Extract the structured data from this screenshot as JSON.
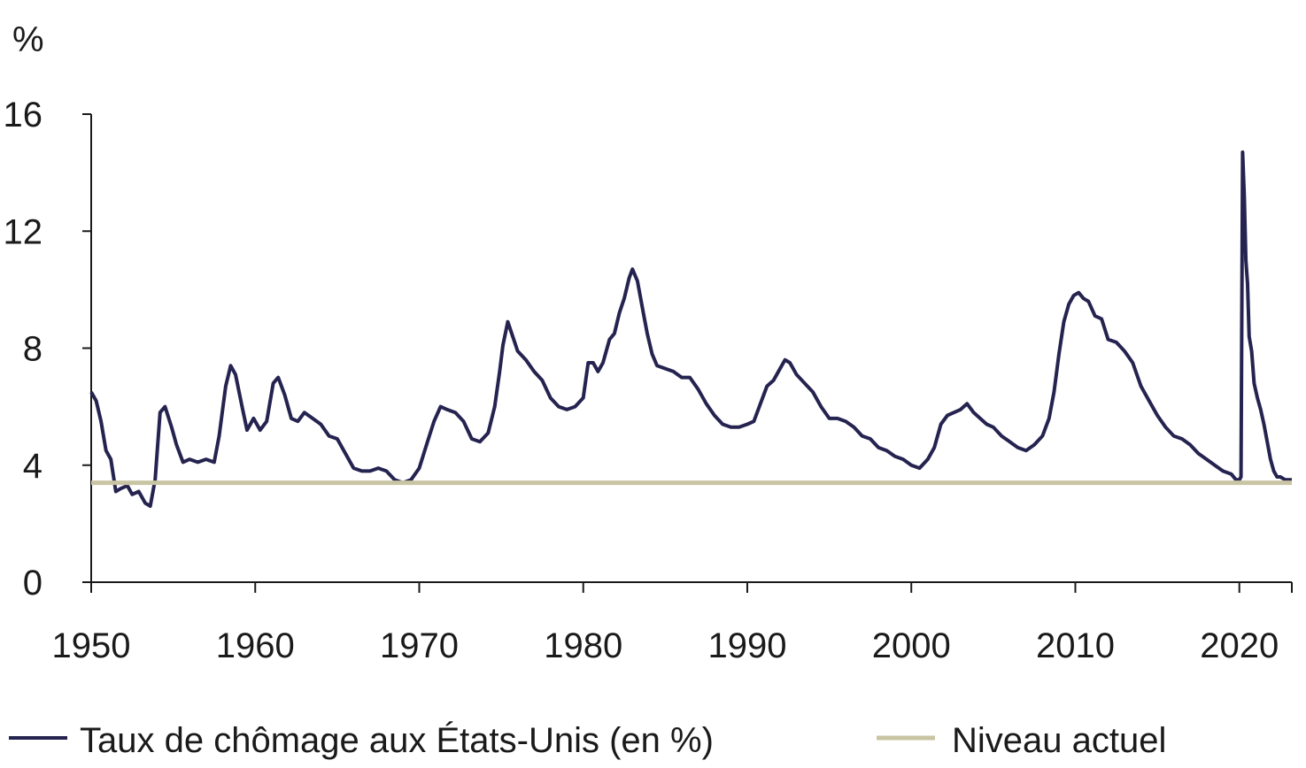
{
  "chart_data": {
    "type": "line",
    "ylabel": "%",
    "ylim": [
      0,
      16
    ],
    "xlim": [
      1950,
      2023.2
    ],
    "x_ticks": [
      "1950",
      "1960",
      "1970",
      "1980",
      "1990",
      "2000",
      "2010",
      "2020"
    ],
    "y_ticks": [
      "0",
      "4",
      "8",
      "12",
      "16"
    ],
    "grid": false,
    "legend_position": "bottom",
    "series": [
      {
        "name": "Taux de chômage aux États-Unis (en %)",
        "color": "#25234f",
        "x": [
          1950.0,
          1950.3,
          1950.6,
          1950.9,
          1951.2,
          1951.5,
          1951.8,
          1952.2,
          1952.5,
          1952.9,
          1953.3,
          1953.6,
          1953.9,
          1954.2,
          1954.5,
          1954.9,
          1955.2,
          1955.6,
          1956.0,
          1956.5,
          1957.0,
          1957.5,
          1957.8,
          1958.2,
          1958.5,
          1958.8,
          1959.2,
          1959.5,
          1959.9,
          1960.3,
          1960.7,
          1961.1,
          1961.4,
          1961.8,
          1962.2,
          1962.6,
          1963.0,
          1963.5,
          1964.0,
          1964.5,
          1965.0,
          1965.5,
          1966.0,
          1966.5,
          1967.0,
          1967.5,
          1968.0,
          1968.5,
          1969.0,
          1969.5,
          1970.0,
          1970.5,
          1970.9,
          1971.3,
          1971.7,
          1972.2,
          1972.7,
          1973.2,
          1973.7,
          1974.2,
          1974.6,
          1974.9,
          1975.1,
          1975.4,
          1975.7,
          1976.0,
          1976.5,
          1977.0,
          1977.5,
          1978.0,
          1978.5,
          1979.0,
          1979.5,
          1980.0,
          1980.3,
          1980.6,
          1980.9,
          1981.2,
          1981.6,
          1981.9,
          1982.2,
          1982.5,
          1982.8,
          1983.0,
          1983.3,
          1983.6,
          1983.9,
          1984.2,
          1984.5,
          1985.0,
          1985.5,
          1986.0,
          1986.5,
          1987.0,
          1987.5,
          1988.0,
          1988.5,
          1989.0,
          1989.5,
          1990.0,
          1990.4,
          1990.8,
          1991.2,
          1991.6,
          1992.0,
          1992.3,
          1992.6,
          1993.0,
          1993.5,
          1994.0,
          1994.5,
          1995.0,
          1995.5,
          1996.0,
          1996.5,
          1997.0,
          1997.5,
          1998.0,
          1998.5,
          1999.0,
          1999.5,
          2000.0,
          2000.5,
          2001.0,
          2001.4,
          2001.8,
          2002.2,
          2002.6,
          2003.0,
          2003.4,
          2003.8,
          2004.2,
          2004.6,
          2005.0,
          2005.5,
          2006.0,
          2006.5,
          2007.0,
          2007.5,
          2008.0,
          2008.4,
          2008.7,
          2009.0,
          2009.3,
          2009.6,
          2009.9,
          2010.2,
          2010.5,
          2010.8,
          2011.2,
          2011.6,
          2012.0,
          2012.5,
          2013.0,
          2013.5,
          2014.0,
          2014.5,
          2015.0,
          2015.5,
          2016.0,
          2016.5,
          2017.0,
          2017.5,
          2018.0,
          2018.5,
          2019.0,
          2019.5,
          2019.8,
          2020.0,
          2020.1,
          2020.2,
          2020.3,
          2020.4,
          2020.5,
          2020.6,
          2020.75,
          2020.9,
          2021.1,
          2021.3,
          2021.5,
          2021.7,
          2021.9,
          2022.1,
          2022.3,
          2022.5,
          2022.8,
          2023.0,
          2023.2
        ],
        "values": [
          6.5,
          6.2,
          5.5,
          4.5,
          4.2,
          3.1,
          3.2,
          3.3,
          3.0,
          3.1,
          2.7,
          2.6,
          3.5,
          5.8,
          6.0,
          5.3,
          4.7,
          4.1,
          4.2,
          4.1,
          4.2,
          4.1,
          5.0,
          6.7,
          7.4,
          7.1,
          6.0,
          5.2,
          5.6,
          5.2,
          5.5,
          6.8,
          7.0,
          6.4,
          5.6,
          5.5,
          5.8,
          5.6,
          5.4,
          5.0,
          4.9,
          4.4,
          3.9,
          3.8,
          3.8,
          3.9,
          3.8,
          3.5,
          3.4,
          3.5,
          3.9,
          4.8,
          5.5,
          6.0,
          5.9,
          5.8,
          5.5,
          4.9,
          4.8,
          5.1,
          6.0,
          7.2,
          8.1,
          8.9,
          8.4,
          7.9,
          7.6,
          7.2,
          6.9,
          6.3,
          6.0,
          5.9,
          6.0,
          6.3,
          7.5,
          7.5,
          7.2,
          7.5,
          8.3,
          8.5,
          9.2,
          9.7,
          10.4,
          10.7,
          10.3,
          9.4,
          8.5,
          7.8,
          7.4,
          7.3,
          7.2,
          7.0,
          7.0,
          6.6,
          6.1,
          5.7,
          5.4,
          5.3,
          5.3,
          5.4,
          5.5,
          6.1,
          6.7,
          6.9,
          7.3,
          7.6,
          7.5,
          7.1,
          6.8,
          6.5,
          6.0,
          5.6,
          5.6,
          5.5,
          5.3,
          5.0,
          4.9,
          4.6,
          4.5,
          4.3,
          4.2,
          4.0,
          3.9,
          4.2,
          4.6,
          5.4,
          5.7,
          5.8,
          5.9,
          6.1,
          5.8,
          5.6,
          5.4,
          5.3,
          5.0,
          4.8,
          4.6,
          4.5,
          4.7,
          5.0,
          5.6,
          6.5,
          7.8,
          8.9,
          9.5,
          9.8,
          9.9,
          9.7,
          9.6,
          9.1,
          9.0,
          8.3,
          8.2,
          7.9,
          7.5,
          6.7,
          6.2,
          5.7,
          5.3,
          5.0,
          4.9,
          4.7,
          4.4,
          4.2,
          4.0,
          3.8,
          3.7,
          3.5,
          3.5,
          3.6,
          14.7,
          13.2,
          11.0,
          10.2,
          8.4,
          7.9,
          6.8,
          6.3,
          5.9,
          5.4,
          4.8,
          4.2,
          3.8,
          3.6,
          3.6,
          3.5,
          3.5,
          3.5
        ]
      },
      {
        "name": "Niveau actuel",
        "color": "#c9c4a3",
        "x": [
          1950.0,
          2023.2
        ],
        "values": [
          3.4,
          3.4
        ]
      }
    ]
  }
}
